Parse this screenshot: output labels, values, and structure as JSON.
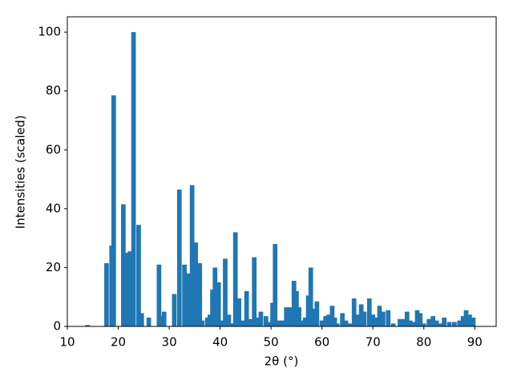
{
  "chart_data": {
    "type": "bar",
    "xlabel": "2θ (°)",
    "ylabel": "Intensities (scaled)",
    "color": "#1f77b4",
    "x": [
      14,
      17.7,
      18.7,
      19.1,
      21,
      21.7,
      22.3,
      23,
      24,
      24.6,
      26,
      28,
      28.5,
      29,
      31,
      32,
      33,
      33.7,
      34.5,
      35.2,
      36,
      36.5,
      37.5,
      38,
      38.5,
      39,
      39.7,
      40.5,
      41,
      41.7,
      42.3,
      43,
      43.7,
      44.5,
      45.2,
      46,
      46.7,
      47.3,
      48,
      49,
      49.5,
      50.3,
      50.8,
      51.5,
      52.3,
      53,
      53.8,
      54.5,
      55,
      55.5,
      56,
      56.7,
      57.3,
      57.8,
      58.5,
      59,
      60,
      60.7,
      61.3,
      62,
      62.5,
      63,
      64,
      64.7,
      65.5,
      66.3,
      67,
      67.7,
      68.3,
      69.3,
      70,
      70.7,
      71.3,
      72,
      73,
      74,
      75.3,
      76,
      76.7,
      77.3,
      78,
      78.7,
      79.3,
      80,
      81,
      81.8,
      82.5,
      83.2,
      84,
      85,
      86,
      87,
      87.7,
      88.3,
      89,
      89.7
    ],
    "values": [
      0.5,
      21.5,
      27.5,
      78.5,
      41.5,
      25,
      25.5,
      100,
      34.5,
      4.5,
      3,
      21,
      3.5,
      5,
      11,
      46.5,
      21,
      18,
      48,
      28.5,
      21.5,
      2,
      3,
      4,
      12.5,
      20,
      15,
      2,
      23,
      4,
      1,
      32,
      9.5,
      2,
      12,
      2.5,
      23.5,
      3,
      5,
      3.5,
      1.5,
      8,
      28,
      2,
      2,
      6.5,
      6.5,
      15.5,
      12,
      6.5,
      2,
      3,
      10.5,
      20,
      6,
      8.5,
      2,
      3.5,
      4,
      7,
      3,
      1,
      4.5,
      2,
      1,
      9.5,
      4,
      7.5,
      5,
      9.5,
      4,
      3,
      7,
      5,
      5.5,
      1,
      2.5,
      2.5,
      5,
      2,
      1.5,
      5.5,
      4.5,
      1,
      2.5,
      3.5,
      2,
      1,
      3,
      1.5,
      1.5,
      2,
      3.5,
      5.5,
      4,
      3
    ],
    "xlim": [
      10,
      94.2
    ],
    "ylim": [
      0,
      105.2
    ],
    "xticks": [
      10,
      20,
      30,
      40,
      50,
      60,
      70,
      80,
      90
    ],
    "yticks": [
      0,
      20,
      40,
      60,
      80,
      100
    ]
  }
}
